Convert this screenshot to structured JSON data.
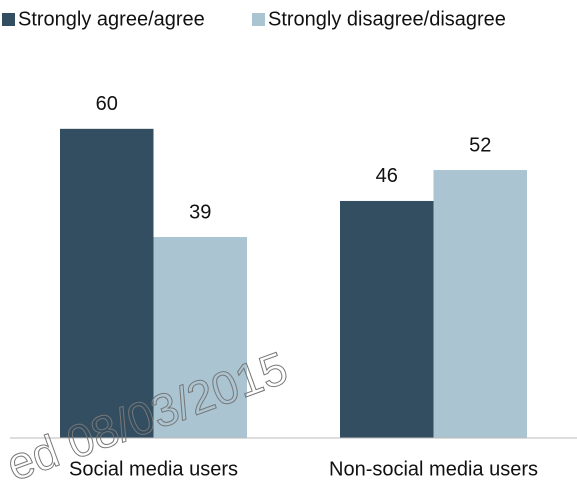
{
  "chart_data": {
    "type": "bar",
    "categories": [
      "Social media users",
      "Non-social media users"
    ],
    "series": [
      {
        "name": "Strongly agree/agree",
        "color": "#344e61",
        "values": [
          60,
          46
        ]
      },
      {
        "name": "Strongly disagree/disagree",
        "color": "#aac4d2",
        "values": [
          39,
          52
        ]
      }
    ],
    "ylim": [
      0,
      85
    ],
    "watermark": "ed 08/03/2015"
  }
}
